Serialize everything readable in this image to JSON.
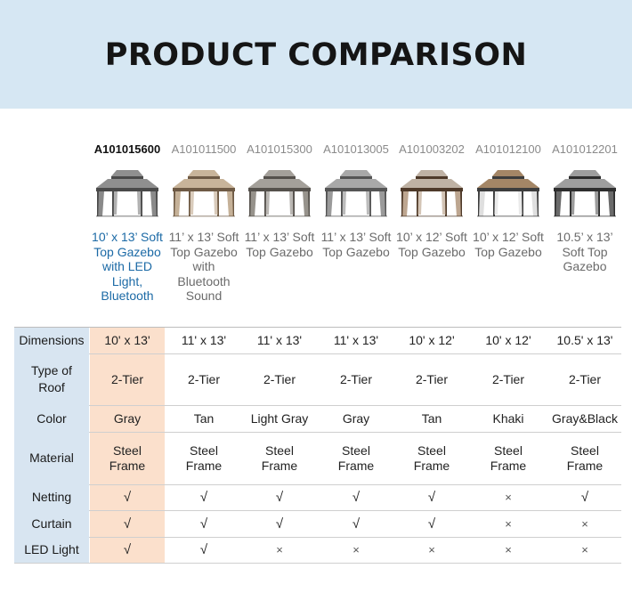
{
  "title": "PRODUCT COMPARISON",
  "products": [
    {
      "sku": "A101015600",
      "name": "10’ x 13’ Soft Top Gazebo with LED Light, Bluetooth",
      "roof": "#8f8f8f",
      "frame": "#4a4a4a",
      "curtain": "#7d7d7d"
    },
    {
      "sku": "A101011500",
      "name": "11’ x 13’ Soft Top Gazebo with Bluetooth Sound",
      "roof": "#c8b49a",
      "frame": "#6e5a45",
      "curtain": "#bfa98d"
    },
    {
      "sku": "A101015300",
      "name": "11’ x 13’ Soft Top Gazebo",
      "roof": "#a4a09a",
      "frame": "#55514c",
      "curtain": "#8c8780"
    },
    {
      "sku": "A101013005",
      "name": "11’ x 13’ Soft Top Gazebo",
      "roof": "#a8a8a8",
      "frame": "#555555",
      "curtain": "#8f8f8f"
    },
    {
      "sku": "A101003202",
      "name": "10’ x 12’ Soft Top Gazebo",
      "roof": "#bfb2a4",
      "frame": "#4e3a2a",
      "curtain": "#b69c84"
    },
    {
      "sku": "A101012100",
      "name": "10’ x 12’ Soft Top Gazebo",
      "roof": "#a48666",
      "frame": "#3d3d3d",
      "curtain": "#dcdcdc"
    },
    {
      "sku": "A101012201",
      "name": "10.5’ x 13’ Soft Top Gazebo",
      "roof": "#9e9e9e",
      "frame": "#2e2e2e",
      "curtain": "#5a5a5a"
    }
  ],
  "rows": [
    {
      "label": "Dimensions",
      "values": [
        "10' x 13'",
        "11' x 13'",
        "11' x 13'",
        "11' x 13'",
        "10' x 12'",
        "10' x 12'",
        "10.5' x 13'"
      ]
    },
    {
      "label": "Type of Roof",
      "values": [
        "2-Tier",
        "2-Tier",
        "2-Tier",
        "2-Tier",
        "2-Tier",
        "2-Tier",
        "2-Tier"
      ]
    },
    {
      "label": "Color",
      "values": [
        "Gray",
        "Tan",
        "Light Gray",
        "Gray",
        "Tan",
        "Khaki",
        "Gray&Black"
      ]
    },
    {
      "label": "Material",
      "values": [
        "Steel Frame",
        "Steel Frame",
        "Steel Frame",
        "Steel Frame",
        "Steel Frame",
        "Steel Frame",
        "Steel Frame"
      ]
    },
    {
      "label": "Netting",
      "values": [
        "√",
        "√",
        "√",
        "√",
        "√",
        "×",
        "√"
      ]
    },
    {
      "label": "Curtain",
      "values": [
        "√",
        "√",
        "√",
        "√",
        "√",
        "×",
        "×"
      ]
    },
    {
      "label": "LED Light",
      "values": [
        "√",
        "√",
        "×",
        "×",
        "×",
        "×",
        "×"
      ]
    }
  ],
  "colors": {
    "banner": "#d6e7f3",
    "highlight": "#fbe0cc",
    "row_header": "#d8e5f1",
    "featured_name": "#1c6aa6"
  }
}
